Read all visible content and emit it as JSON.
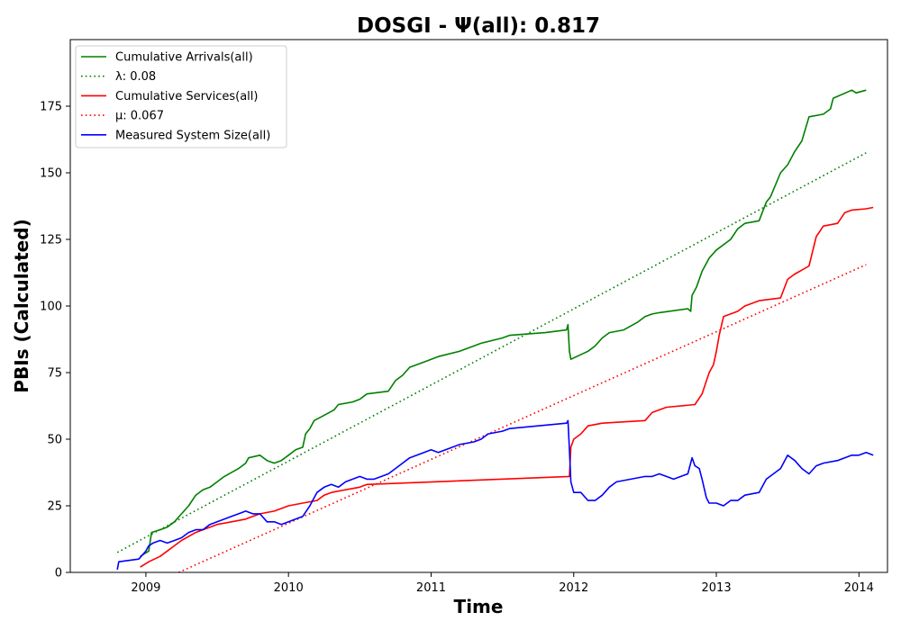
{
  "chart_data": {
    "type": "line",
    "title": "DOSGI -  Ψ(all): 0.817",
    "xlabel": "Time",
    "ylabel": "PBIs (Calculated)",
    "xlim": [
      2008.47,
      2014.2
    ],
    "ylim": [
      0,
      200
    ],
    "x_ticks": [
      2009,
      2010,
      2011,
      2012,
      2013,
      2014
    ],
    "x_tick_labels": [
      "2009",
      "2010",
      "2011",
      "2012",
      "2013",
      "2014"
    ],
    "y_ticks": [
      0,
      25,
      50,
      75,
      100,
      125,
      150,
      175
    ],
    "y_tick_labels": [
      "0",
      "25",
      "50",
      "75",
      "100",
      "125",
      "150",
      "175"
    ],
    "grid": false,
    "legend_position": "top-left",
    "series": [
      {
        "name": "Cumulative Arrivals(all)",
        "color": "#008000",
        "style": "solid",
        "points": [
          [
            2008.96,
            6
          ],
          [
            2009.02,
            8
          ],
          [
            2009.04,
            15
          ],
          [
            2009.1,
            16
          ],
          [
            2009.15,
            17
          ],
          [
            2009.2,
            19
          ],
          [
            2009.25,
            22
          ],
          [
            2009.3,
            25
          ],
          [
            2009.35,
            29
          ],
          [
            2009.4,
            31
          ],
          [
            2009.45,
            32
          ],
          [
            2009.5,
            34
          ],
          [
            2009.55,
            36
          ],
          [
            2009.65,
            39
          ],
          [
            2009.7,
            41
          ],
          [
            2009.72,
            43
          ],
          [
            2009.8,
            44
          ],
          [
            2009.85,
            42
          ],
          [
            2009.9,
            41
          ],
          [
            2009.95,
            42
          ],
          [
            2010.0,
            44
          ],
          [
            2010.05,
            46
          ],
          [
            2010.1,
            47
          ],
          [
            2010.12,
            52
          ],
          [
            2010.15,
            54
          ],
          [
            2010.18,
            57
          ],
          [
            2010.25,
            59
          ],
          [
            2010.32,
            61
          ],
          [
            2010.35,
            63
          ],
          [
            2010.45,
            64
          ],
          [
            2010.5,
            65
          ],
          [
            2010.55,
            67
          ],
          [
            2010.7,
            68
          ],
          [
            2010.75,
            72
          ],
          [
            2010.8,
            74
          ],
          [
            2010.85,
            77
          ],
          [
            2010.95,
            79
          ],
          [
            2011.05,
            81
          ],
          [
            2011.2,
            83
          ],
          [
            2011.3,
            85
          ],
          [
            2011.35,
            86
          ],
          [
            2011.5,
            88
          ],
          [
            2011.55,
            89
          ],
          [
            2011.8,
            90
          ],
          [
            2011.95,
            91
          ],
          [
            2011.96,
            93
          ],
          [
            2011.97,
            83
          ],
          [
            2011.98,
            80
          ],
          [
            2012.1,
            83
          ],
          [
            2012.15,
            85
          ],
          [
            2012.2,
            88
          ],
          [
            2012.25,
            90
          ],
          [
            2012.35,
            91
          ],
          [
            2012.45,
            94
          ],
          [
            2012.5,
            96
          ],
          [
            2012.55,
            97
          ],
          [
            2012.6,
            97.5
          ],
          [
            2012.8,
            99
          ],
          [
            2012.82,
            98
          ],
          [
            2012.83,
            104
          ],
          [
            2012.86,
            107
          ],
          [
            2012.9,
            113
          ],
          [
            2012.95,
            118
          ],
          [
            2013.0,
            121
          ],
          [
            2013.1,
            125
          ],
          [
            2013.15,
            129
          ],
          [
            2013.2,
            131
          ],
          [
            2013.3,
            132
          ],
          [
            2013.35,
            139
          ],
          [
            2013.38,
            141
          ],
          [
            2013.45,
            150
          ],
          [
            2013.5,
            153
          ],
          [
            2013.55,
            158
          ],
          [
            2013.6,
            162
          ],
          [
            2013.65,
            171
          ],
          [
            2013.75,
            172
          ],
          [
            2013.8,
            174
          ],
          [
            2013.82,
            178
          ],
          [
            2013.95,
            181
          ],
          [
            2013.98,
            180
          ],
          [
            2014.05,
            181
          ]
        ]
      },
      {
        "name": "λ: 0.08",
        "color": "#008000",
        "style": "dotted",
        "points": [
          [
            2008.8,
            7.5
          ],
          [
            2014.05,
            157.5
          ]
        ]
      },
      {
        "name": "Cumulative Services(all)",
        "color": "#ff0000",
        "style": "solid",
        "points": [
          [
            2008.96,
            2
          ],
          [
            2009.02,
            4
          ],
          [
            2009.1,
            6
          ],
          [
            2009.15,
            8
          ],
          [
            2009.2,
            10
          ],
          [
            2009.25,
            12
          ],
          [
            2009.35,
            15
          ],
          [
            2009.4,
            16
          ],
          [
            2009.45,
            17
          ],
          [
            2009.5,
            18
          ],
          [
            2009.6,
            19
          ],
          [
            2009.7,
            20
          ],
          [
            2009.75,
            21
          ],
          [
            2009.8,
            22
          ],
          [
            2009.9,
            23
          ],
          [
            2010.0,
            25
          ],
          [
            2010.1,
            26
          ],
          [
            2010.2,
            27
          ],
          [
            2010.25,
            29
          ],
          [
            2010.3,
            30
          ],
          [
            2010.4,
            31
          ],
          [
            2010.5,
            32
          ],
          [
            2010.55,
            33
          ],
          [
            2011.97,
            36
          ],
          [
            2011.98,
            47
          ],
          [
            2012.0,
            50
          ],
          [
            2012.05,
            52
          ],
          [
            2012.1,
            55
          ],
          [
            2012.2,
            56
          ],
          [
            2012.5,
            57
          ],
          [
            2012.55,
            60
          ],
          [
            2012.6,
            61
          ],
          [
            2012.65,
            62
          ],
          [
            2012.85,
            63
          ],
          [
            2012.9,
            67
          ],
          [
            2012.95,
            75
          ],
          [
            2012.98,
            78
          ],
          [
            2013.0,
            83
          ],
          [
            2013.02,
            89
          ],
          [
            2013.05,
            96
          ],
          [
            2013.15,
            98
          ],
          [
            2013.2,
            100
          ],
          [
            2013.3,
            102
          ],
          [
            2013.45,
            103
          ],
          [
            2013.5,
            110
          ],
          [
            2013.55,
            112
          ],
          [
            2013.65,
            115
          ],
          [
            2013.7,
            126
          ],
          [
            2013.75,
            130
          ],
          [
            2013.85,
            131
          ],
          [
            2013.9,
            135
          ],
          [
            2013.95,
            136
          ],
          [
            2014.05,
            136.5
          ],
          [
            2014.1,
            137
          ]
        ]
      },
      {
        "name": "μ: 0.067",
        "color": "#ff0000",
        "style": "dotted",
        "points": [
          [
            2009.23,
            0
          ],
          [
            2014.05,
            115.5
          ]
        ]
      },
      {
        "name": "Measured System Size(all)",
        "color": "#0000ff",
        "style": "solid",
        "points": [
          [
            2008.8,
            1
          ],
          [
            2008.81,
            4
          ],
          [
            2008.95,
            5
          ],
          [
            2009.0,
            8
          ],
          [
            2009.02,
            10
          ],
          [
            2009.05,
            11
          ],
          [
            2009.1,
            12
          ],
          [
            2009.15,
            11
          ],
          [
            2009.2,
            12
          ],
          [
            2009.25,
            13
          ],
          [
            2009.3,
            15
          ],
          [
            2009.35,
            16
          ],
          [
            2009.4,
            16
          ],
          [
            2009.45,
            18
          ],
          [
            2009.5,
            19
          ],
          [
            2009.55,
            20
          ],
          [
            2009.6,
            21
          ],
          [
            2009.65,
            22
          ],
          [
            2009.7,
            23
          ],
          [
            2009.75,
            22
          ],
          [
            2009.8,
            22
          ],
          [
            2009.85,
            19
          ],
          [
            2009.9,
            19
          ],
          [
            2009.95,
            18
          ],
          [
            2010.0,
            19
          ],
          [
            2010.05,
            20
          ],
          [
            2010.1,
            21
          ],
          [
            2010.15,
            25
          ],
          [
            2010.2,
            30
          ],
          [
            2010.25,
            32
          ],
          [
            2010.3,
            33
          ],
          [
            2010.35,
            32
          ],
          [
            2010.4,
            34
          ],
          [
            2010.45,
            35
          ],
          [
            2010.5,
            36
          ],
          [
            2010.55,
            35
          ],
          [
            2010.6,
            35
          ],
          [
            2010.7,
            37
          ],
          [
            2010.75,
            39
          ],
          [
            2010.8,
            41
          ],
          [
            2010.85,
            43
          ],
          [
            2010.9,
            44
          ],
          [
            2010.95,
            45
          ],
          [
            2011.0,
            46
          ],
          [
            2011.05,
            45
          ],
          [
            2011.15,
            47
          ],
          [
            2011.2,
            48
          ],
          [
            2011.3,
            49
          ],
          [
            2011.35,
            50
          ],
          [
            2011.4,
            52
          ],
          [
            2011.5,
            53
          ],
          [
            2011.55,
            54
          ],
          [
            2011.95,
            56
          ],
          [
            2011.96,
            57
          ],
          [
            2011.97,
            46
          ],
          [
            2011.98,
            34
          ],
          [
            2012.0,
            30
          ],
          [
            2012.05,
            30
          ],
          [
            2012.1,
            27
          ],
          [
            2012.15,
            27
          ],
          [
            2012.2,
            29
          ],
          [
            2012.25,
            32
          ],
          [
            2012.3,
            34
          ],
          [
            2012.4,
            35
          ],
          [
            2012.5,
            36
          ],
          [
            2012.55,
            36
          ],
          [
            2012.6,
            37
          ],
          [
            2012.65,
            36
          ],
          [
            2012.7,
            35
          ],
          [
            2012.8,
            37
          ],
          [
            2012.83,
            43
          ],
          [
            2012.85,
            40
          ],
          [
            2012.88,
            39
          ],
          [
            2012.9,
            35
          ],
          [
            2012.93,
            28
          ],
          [
            2012.95,
            26
          ],
          [
            2013.0,
            26
          ],
          [
            2013.05,
            25
          ],
          [
            2013.1,
            27
          ],
          [
            2013.15,
            27
          ],
          [
            2013.2,
            29
          ],
          [
            2013.3,
            30
          ],
          [
            2013.35,
            35
          ],
          [
            2013.4,
            37
          ],
          [
            2013.45,
            39
          ],
          [
            2013.5,
            44
          ],
          [
            2013.55,
            42
          ],
          [
            2013.6,
            39
          ],
          [
            2013.65,
            37
          ],
          [
            2013.7,
            40
          ],
          [
            2013.75,
            41
          ],
          [
            2013.85,
            42
          ],
          [
            2013.9,
            43
          ],
          [
            2013.95,
            44
          ],
          [
            2014.0,
            44
          ],
          [
            2014.05,
            45
          ],
          [
            2014.1,
            44
          ]
        ]
      }
    ]
  }
}
